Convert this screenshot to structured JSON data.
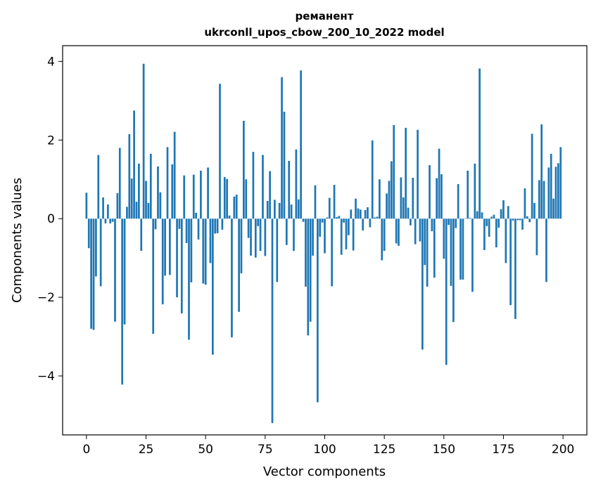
{
  "chart_data": {
    "type": "bar",
    "title_lines": [
      "ремaнент",
      "ukrconll_upos_cbow_200_10_2022 model"
    ],
    "xlabel": "Vector components",
    "ylabel": "Components values",
    "xlim": [
      -10,
      210
    ],
    "ylim": [
      -5.5,
      4.4
    ],
    "xticks": [
      0,
      25,
      50,
      75,
      100,
      125,
      150,
      175,
      200
    ],
    "yticks": [
      -4,
      -2,
      0,
      2,
      4
    ],
    "ytick_labels": [
      "−4",
      "−2",
      "0",
      "2",
      "4"
    ],
    "grid": false,
    "bar_color": "#1f77b4",
    "x": [
      0,
      1,
      2,
      3,
      4,
      5,
      6,
      7,
      8,
      9,
      10,
      11,
      12,
      13,
      14,
      15,
      16,
      17,
      18,
      19,
      20,
      21,
      22,
      23,
      24,
      25,
      26,
      27,
      28,
      29,
      30,
      31,
      32,
      33,
      34,
      35,
      36,
      37,
      38,
      39,
      40,
      41,
      42,
      43,
      44,
      45,
      46,
      47,
      48,
      49,
      50,
      51,
      52,
      53,
      54,
      55,
      56,
      57,
      58,
      59,
      60,
      61,
      62,
      63,
      64,
      65,
      66,
      67,
      68,
      69,
      70,
      71,
      72,
      73,
      74,
      75,
      76,
      77,
      78,
      79,
      80,
      81,
      82,
      83,
      84,
      85,
      86,
      87,
      88,
      89,
      90,
      91,
      92,
      93,
      94,
      95,
      96,
      97,
      98,
      99,
      100,
      101,
      102,
      103,
      104,
      105,
      106,
      107,
      108,
      109,
      110,
      111,
      112,
      113,
      114,
      115,
      116,
      117,
      118,
      119,
      120,
      121,
      122,
      123,
      124,
      125,
      126,
      127,
      128,
      129,
      130,
      131,
      132,
      133,
      134,
      135,
      136,
      137,
      138,
      139,
      140,
      141,
      142,
      143,
      144,
      145,
      146,
      147,
      148,
      149,
      150,
      151,
      152,
      153,
      154,
      155,
      156,
      157,
      158,
      159,
      160,
      161,
      162,
      163,
      164,
      165,
      166,
      167,
      168,
      169,
      170,
      171,
      172,
      173,
      174,
      175,
      176,
      177,
      178,
      179,
      180,
      181,
      182,
      183,
      184,
      185,
      186,
      187,
      188,
      189,
      190,
      191,
      192,
      193,
      194,
      195,
      196,
      197,
      198,
      199
    ],
    "values": [
      0.66,
      -0.75,
      -2.8,
      -2.83,
      -1.47,
      1.62,
      -1.72,
      0.54,
      -0.12,
      0.36,
      -0.12,
      -0.08,
      -2.62,
      0.65,
      1.8,
      -4.22,
      -2.69,
      0.3,
      2.15,
      1.02,
      2.75,
      0.43,
      1.4,
      -0.82,
      3.94,
      0.96,
      0.4,
      1.65,
      -2.93,
      -0.27,
      1.33,
      0.67,
      -2.18,
      -1.45,
      1.82,
      -1.43,
      1.38,
      2.21,
      -2.0,
      -0.26,
      -2.41,
      1.1,
      -0.62,
      -3.08,
      -1.62,
      1.12,
      0.15,
      -0.53,
      1.22,
      -1.65,
      -1.68,
      1.3,
      -1.13,
      -3.46,
      -0.38,
      -0.37,
      3.43,
      -0.28,
      1.06,
      1.01,
      0.08,
      -3.02,
      0.56,
      0.61,
      -2.37,
      -1.39,
      2.49,
      1.0,
      -0.49,
      -0.94,
      1.7,
      -0.99,
      -0.19,
      -0.82,
      1.62,
      -0.95,
      0.45,
      1.21,
      -5.2,
      0.48,
      -1.61,
      0.4,
      3.6,
      2.72,
      -0.67,
      1.47,
      0.36,
      -0.82,
      1.76,
      0.49,
      3.77,
      -0.08,
      -1.73,
      -2.97,
      -2.62,
      -0.94,
      0.85,
      -4.67,
      -0.46,
      -0.1,
      -0.88,
      0.03,
      0.53,
      -1.72,
      0.86,
      0.04,
      0.07,
      -0.92,
      -0.1,
      -0.78,
      -0.42,
      0.23,
      -0.81,
      0.51,
      0.26,
      0.23,
      -0.3,
      0.22,
      0.29,
      -0.22,
      1.99,
      0.03,
      0.05,
      1.0,
      -1.06,
      -0.82,
      0.64,
      0.96,
      1.46,
      2.38,
      -0.63,
      -0.69,
      1.05,
      0.54,
      2.31,
      0.28,
      -0.17,
      1.04,
      -0.65,
      2.26,
      -0.58,
      -3.33,
      -1.18,
      -1.73,
      1.36,
      -0.32,
      -1.5,
      1.03,
      1.78,
      1.13,
      -1.02,
      -3.72,
      -0.16,
      -1.71,
      -2.63,
      -0.24,
      0.88,
      -1.55,
      -1.55,
      0.01,
      1.22,
      0.02,
      -1.86,
      1.4,
      0.19,
      3.82,
      0.16,
      -0.8,
      -0.19,
      -0.46,
      0.05,
      0.1,
      -0.73,
      -0.23,
      0.24,
      0.47,
      -1.13,
      0.32,
      -2.2,
      -0.05,
      -2.55,
      -0.04,
      -0.04,
      -0.28,
      0.77,
      0.06,
      -0.09,
      2.16,
      0.4,
      -0.93,
      0.98,
      2.4,
      0.96,
      -1.61,
      1.3,
      1.65,
      0.51,
      1.32,
      1.41,
      1.82
    ]
  }
}
